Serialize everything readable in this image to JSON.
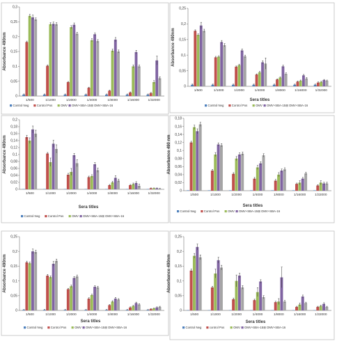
{
  "colors": [
    "#4f81bd",
    "#c0504d",
    "#9bbb59",
    "#8064a2",
    "#a5a5a5"
  ],
  "chart_data": [
    {
      "type": "bar",
      "categories": [
        "1/500",
        "1/1000",
        "1/2000",
        "1/4000",
        "1/8000",
        "1/16000",
        "1/32000"
      ],
      "ylim": [
        0,
        0.3
      ],
      "yticks": [
        "0",
        "0,05",
        "0,1",
        "0,15",
        "0,2",
        "0,25",
        "0,3"
      ],
      "ylabel": "Absorbance 490nm",
      "xlabel": "",
      "legend_position": "bottom",
      "series": [
        {
          "name": "Control Neg",
          "values": [
            0.005,
            0.005,
            0.005,
            0.005,
            0.005,
            0.005,
            0.005
          ],
          "errors": [
            0.002,
            0.002,
            0.002,
            0.002,
            0.002,
            0.002,
            0.002
          ]
        },
        {
          "name": "Control Pos",
          "values": [
            0.182,
            0.102,
            0.047,
            0.028,
            0.018,
            0.012,
            0.01
          ],
          "errors": [
            0.003,
            0.003,
            0.002,
            0.002,
            0.002,
            0.002,
            0.002
          ]
        },
        {
          "name": "OMV",
          "values": [
            0.27,
            0.242,
            0.232,
            0.188,
            0.153,
            0.1,
            0.047
          ],
          "errors": [
            0.005,
            0.005,
            0.005,
            0.005,
            0.005,
            0.005,
            0.005
          ]
        },
        {
          "name": "OMV+SBA-15",
          "values": [
            0.265,
            0.243,
            0.24,
            0.208,
            0.19,
            0.148,
            0.12
          ],
          "errors": [
            0.008,
            0.006,
            0.006,
            0.005,
            0.007,
            0.006,
            0.015
          ]
        },
        {
          "name": "OMV+SBA-16",
          "values": [
            0.258,
            0.242,
            0.21,
            0.185,
            0.15,
            0.1,
            0.06
          ],
          "errors": [
            0.005,
            0.005,
            0.005,
            0.005,
            0.005,
            0.005,
            0.005
          ]
        }
      ]
    },
    {
      "type": "bar",
      "categories": [
        "1/500",
        "1/1000",
        "1/2000",
        "1/4000",
        "1/8000",
        "1/16000",
        "1/32000"
      ],
      "ylim": [
        0,
        0.25
      ],
      "yticks": [
        "0",
        "0,05",
        "0,1",
        "0,15",
        "0,2",
        "0,25"
      ],
      "ylabel": "Absorbance 490nm",
      "xlabel": "Sera titles",
      "legend_position": "bottom",
      "series": [
        {
          "name": "Control Neg",
          "values": [
            0.005,
            0.005,
            0.005,
            0.005,
            0.005,
            0.005,
            0.005
          ],
          "errors": [
            0.002,
            0.002,
            0.002,
            0.002,
            0.002,
            0.002,
            0.002
          ]
        },
        {
          "name": "Control Pos",
          "values": [
            0.178,
            0.093,
            0.063,
            0.038,
            0.022,
            0.015,
            0.012
          ],
          "errors": [
            0.003,
            0.003,
            0.002,
            0.002,
            0.002,
            0.002,
            0.002
          ]
        },
        {
          "name": "OMV",
          "values": [
            0.165,
            0.095,
            0.068,
            0.045,
            0.028,
            0.018,
            0.014
          ],
          "errors": [
            0.003,
            0.003,
            0.003,
            0.003,
            0.002,
            0.002,
            0.002
          ]
        },
        {
          "name": "OMV+SBA-15",
          "values": [
            0.195,
            0.142,
            0.115,
            0.077,
            0.064,
            0.035,
            0.02
          ],
          "errors": [
            0.01,
            0.005,
            0.005,
            0.005,
            0.004,
            0.003,
            0.002
          ]
        },
        {
          "name": "OMV+SBA-16",
          "values": [
            0.178,
            0.132,
            0.096,
            0.073,
            0.04,
            0.025,
            0.018
          ],
          "errors": [
            0.005,
            0.005,
            0.004,
            0.018,
            0.003,
            0.003,
            0.002
          ]
        }
      ]
    },
    {
      "type": "bar",
      "categories": [
        "1/500",
        "1/1000",
        "1/2000",
        "1/4000",
        "1/8000",
        "1/16000",
        "1/32000"
      ],
      "ylim": [
        0,
        0.2
      ],
      "yticks": [
        "0",
        "0,02",
        "0,04",
        "0,06",
        "0,08",
        "0,1",
        "0,12",
        "0,14",
        "0,16",
        "0,18",
        "0,2"
      ],
      "ylabel": "Absorbance 490nm",
      "xlabel": "Sera titles",
      "legend_position": "bottom",
      "series": [
        {
          "name": "Control Neg",
          "values": [
            0.001,
            0.001,
            0.001,
            0.001,
            0.001,
            0.001,
            0.001
          ],
          "errors": [
            0,
            0,
            0,
            0,
            0,
            0,
            0
          ]
        },
        {
          "name": "Control Pos",
          "values": [
            0.15,
            0.103,
            0.042,
            0.035,
            0.012,
            0.012,
            0.003
          ],
          "errors": [
            0.005,
            0.003,
            0.004,
            0.003,
            0.002,
            0.002,
            0.001
          ]
        },
        {
          "name": "OMV",
          "values": [
            0.14,
            0.078,
            0.05,
            0.038,
            0.02,
            0.015,
            0.003
          ],
          "errors": [
            0.008,
            0.012,
            0.01,
            0.004,
            0.003,
            0.003,
            0.001
          ]
        },
        {
          "name": "OMV+SBA-15",
          "values": [
            0.172,
            0.131,
            0.098,
            0.072,
            0.033,
            0.018,
            0.003
          ],
          "errors": [
            0.01,
            0.01,
            0.005,
            0.005,
            0.006,
            0.004,
            0.001
          ]
        },
        {
          "name": "OMV+SBA-16",
          "values": [
            0.16,
            0.116,
            0.075,
            0.055,
            0.025,
            0.01,
            0.002
          ],
          "errors": [
            0.01,
            0.012,
            0.01,
            0.006,
            0.004,
            0.005,
            0.001
          ]
        }
      ]
    },
    {
      "type": "bar",
      "categories": [
        "1/500",
        "1/1000",
        "1/2000",
        "1/4000",
        "1/8000",
        "1/16000",
        "1/32000"
      ],
      "ylim": [
        0,
        0.18
      ],
      "yticks": [
        "0",
        "0,02",
        "0,04",
        "0,06",
        "0,08",
        "0,1",
        "0,12",
        "0,14",
        "0,16",
        "0,18"
      ],
      "ylabel": "Absorbance 490 nm",
      "xlabel": "Sera titles",
      "legend_position": "bottom",
      "series": [
        {
          "name": "Control Neg",
          "values": [
            0.001,
            0.001,
            0.001,
            0.001,
            0.001,
            0.001,
            0.001
          ],
          "errors": [
            0,
            0,
            0,
            0,
            0,
            0,
            0
          ]
        },
        {
          "name": "Control Pos",
          "values": [
            0.12,
            0.05,
            0.042,
            0.03,
            0.025,
            0.017,
            0.013
          ],
          "errors": [
            0.003,
            0.003,
            0.003,
            0.003,
            0.003,
            0.002,
            0.002
          ]
        },
        {
          "name": "OMV",
          "values": [
            0.158,
            0.09,
            0.08,
            0.058,
            0.04,
            0.02,
            0.02
          ],
          "errors": [
            0.005,
            0.005,
            0.005,
            0.005,
            0.005,
            0.005,
            0.005
          ]
        },
        {
          "name": "OMV+SBA-15",
          "values": [
            0.148,
            0.115,
            0.09,
            0.068,
            0.05,
            0.03,
            0.018
          ],
          "errors": [
            0.006,
            0.004,
            0.004,
            0.004,
            0.004,
            0.003,
            0.003
          ]
        },
        {
          "name": "OMV+SBA-16",
          "values": [
            0.165,
            0.113,
            0.092,
            0.088,
            0.053,
            0.043,
            0.018
          ],
          "errors": [
            0.005,
            0.004,
            0.004,
            0.004,
            0.004,
            0.003,
            0.003
          ]
        }
      ]
    },
    {
      "type": "bar",
      "categories": [
        "1/500",
        "1/1000",
        "1/2000",
        "1/4000",
        "1/8000",
        "1/16000",
        "1/32000"
      ],
      "ylim": [
        0,
        0.25
      ],
      "yticks": [
        "0",
        "0,05",
        "0,1",
        "0,15",
        "0,2",
        "0,25"
      ],
      "ylabel": "Absorbance 490nm",
      "xlabel": "Sera titles",
      "legend_position": "bottom",
      "series": [
        {
          "name": "Control Neg",
          "values": [
            0.002,
            0.002,
            0.002,
            0.002,
            0.002,
            0.002,
            0.002
          ],
          "errors": [
            0.001,
            0.001,
            0.001,
            0.001,
            0.001,
            0.001,
            0.001
          ]
        },
        {
          "name": "Control Pos",
          "values": [
            0.163,
            0.118,
            0.072,
            0.04,
            0.018,
            0.01,
            0.005
          ],
          "errors": [
            0.004,
            0.004,
            0.003,
            0.003,
            0.002,
            0.002,
            0.001
          ]
        },
        {
          "name": "OMV",
          "values": [
            0.16,
            0.113,
            0.082,
            0.052,
            0.03,
            0.015,
            0.007
          ],
          "errors": [
            0.004,
            0.004,
            0.004,
            0.003,
            0.003,
            0.002,
            0.001
          ]
        },
        {
          "name": "OMV+SBA-15",
          "values": [
            0.2,
            0.158,
            0.11,
            0.08,
            0.04,
            0.025,
            0.01
          ],
          "errors": [
            0.008,
            0.008,
            0.005,
            0.004,
            0.004,
            0.003,
            0.002
          ]
        },
        {
          "name": "OMV+SBA-16",
          "values": [
            0.198,
            0.168,
            0.115,
            0.078,
            0.037,
            0.02,
            0.012
          ],
          "errors": [
            0.006,
            0.006,
            0.005,
            0.004,
            0.003,
            0.003,
            0.002
          ]
        }
      ]
    },
    {
      "type": "bar",
      "categories": [
        "1/500",
        "1/1000",
        "1/2000",
        "1/4000",
        "1/8000",
        "1/16000",
        "1/32000"
      ],
      "ylim": [
        0,
        0.25
      ],
      "yticks": [
        "0",
        "0,05",
        "0,1",
        "0,15",
        "0,2",
        "0,25"
      ],
      "ylabel": "Absorbance 490nm",
      "xlabel": "Sera titles",
      "legend_position": "bottom",
      "series": [
        {
          "name": "Control Neg",
          "values": [
            0.001,
            0.001,
            0.001,
            0.001,
            0.001,
            0.001,
            0.001
          ],
          "errors": [
            0,
            0,
            0,
            0,
            0,
            0,
            0
          ]
        },
        {
          "name": "control Pos",
          "values": [
            0.135,
            0.078,
            0.038,
            0.035,
            0.028,
            0.012,
            0.012
          ],
          "errors": [
            0.005,
            0.004,
            0.004,
            0.003,
            0.003,
            0.002,
            0.002
          ]
        },
        {
          "name": "OMV",
          "values": [
            0.185,
            0.125,
            0.1,
            0.062,
            0.03,
            0.02,
            0.015
          ],
          "errors": [
            0.008,
            0.015,
            0.02,
            0.015,
            0.01,
            0.005,
            0.003
          ]
        },
        {
          "name": "OMV+SBA-15",
          "values": [
            0.215,
            0.17,
            0.118,
            0.098,
            0.112,
            0.047,
            0.022
          ],
          "errors": [
            0.01,
            0.01,
            0.008,
            0.006,
            0.035,
            0.005,
            0.004
          ]
        },
        {
          "name": "OMV+SBA-16",
          "values": [
            0.18,
            0.145,
            0.078,
            0.045,
            0.03,
            0.025,
            0.012
          ],
          "errors": [
            0.008,
            0.008,
            0.006,
            0.005,
            0.004,
            0.003,
            0.002
          ]
        }
      ]
    }
  ]
}
